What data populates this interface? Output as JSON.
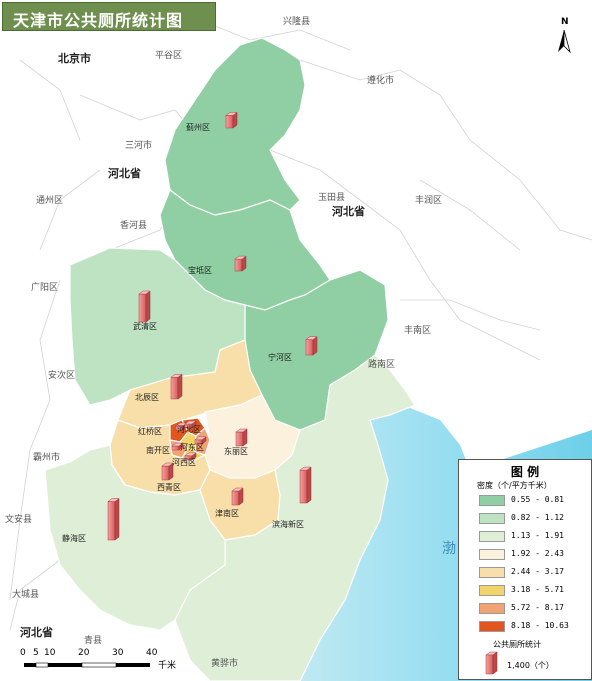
{
  "title": "天津市公共厕所统计图",
  "north_label": "N",
  "legend": {
    "title": "图 例",
    "density_heading": "密度（个/平方千米）",
    "classes": [
      {
        "label": "0.55 - 0.81",
        "color": "#8fcfa3"
      },
      {
        "label": "0.82 - 1.12",
        "color": "#bde3c2"
      },
      {
        "label": "1.13 - 1.91",
        "color": "#dfeed6"
      },
      {
        "label": "1.92 - 2.43",
        "color": "#fbf1dc"
      },
      {
        "label": "2.44 - 3.17",
        "color": "#f8dfaa"
      },
      {
        "label": "3.18 - 5.71",
        "color": "#f1d46a"
      },
      {
        "label": "5.72 - 8.17",
        "color": "#f3a274"
      },
      {
        "label": "8.18 - 10.63",
        "color": "#e0561c"
      }
    ],
    "toilet_heading": "公共厕所统计",
    "toilet_sample_value": "1,400（个）"
  },
  "scale_bar": {
    "ticks": [
      "0",
      "5",
      "10",
      "20",
      "30",
      "40"
    ],
    "unit": "千米"
  },
  "districts": [
    {
      "name": "蓟州区",
      "density_class": 1,
      "toilet_bar_level": 0.18
    },
    {
      "name": "宝坻区",
      "density_class": 1,
      "toilet_bar_level": 0.17
    },
    {
      "name": "宁河区",
      "density_class": 1,
      "toilet_bar_level": 0.22
    },
    {
      "name": "武清区",
      "density_class": 2,
      "toilet_bar_level": 0.4
    },
    {
      "name": "北辰区",
      "density_class": 5,
      "toilet_bar_level": 0.31
    },
    {
      "name": "东丽区",
      "density_class": 4,
      "toilet_bar_level": 0.2
    },
    {
      "name": "西青区",
      "density_class": 5,
      "toilet_bar_level": 0.2
    },
    {
      "name": "津南区",
      "density_class": 5,
      "toilet_bar_level": 0.2
    },
    {
      "name": "滨海新区",
      "density_class": 3,
      "toilet_bar_level": 0.47
    },
    {
      "name": "静海区",
      "density_class": 3,
      "toilet_bar_level": 0.55
    },
    {
      "name": "红桥区",
      "density_class": 8,
      "toilet_bar_level": 0.04
    },
    {
      "name": "河北区",
      "density_class": 8,
      "toilet_bar_level": 0.05
    },
    {
      "name": "河东区",
      "density_class": 7,
      "toilet_bar_level": 0.06
    },
    {
      "name": "南开区",
      "density_class": 7,
      "toilet_bar_level": 0.05
    },
    {
      "name": "河西区",
      "density_class": 6,
      "toilet_bar_level": 0.06
    }
  ],
  "external_labels": [
    "兴隆县",
    "平谷区",
    "遵化市",
    "三河市",
    "玉田县",
    "丰润区",
    "通州区",
    "香河县",
    "广阳区",
    "丰南区",
    "路南区",
    "安次区",
    "霸州市",
    "文安县",
    "大城县",
    "青县",
    "黄骅市"
  ],
  "province_labels": [
    "北京市",
    "河北省",
    "河北省",
    "河北省"
  ],
  "sea_label": "渤"
}
